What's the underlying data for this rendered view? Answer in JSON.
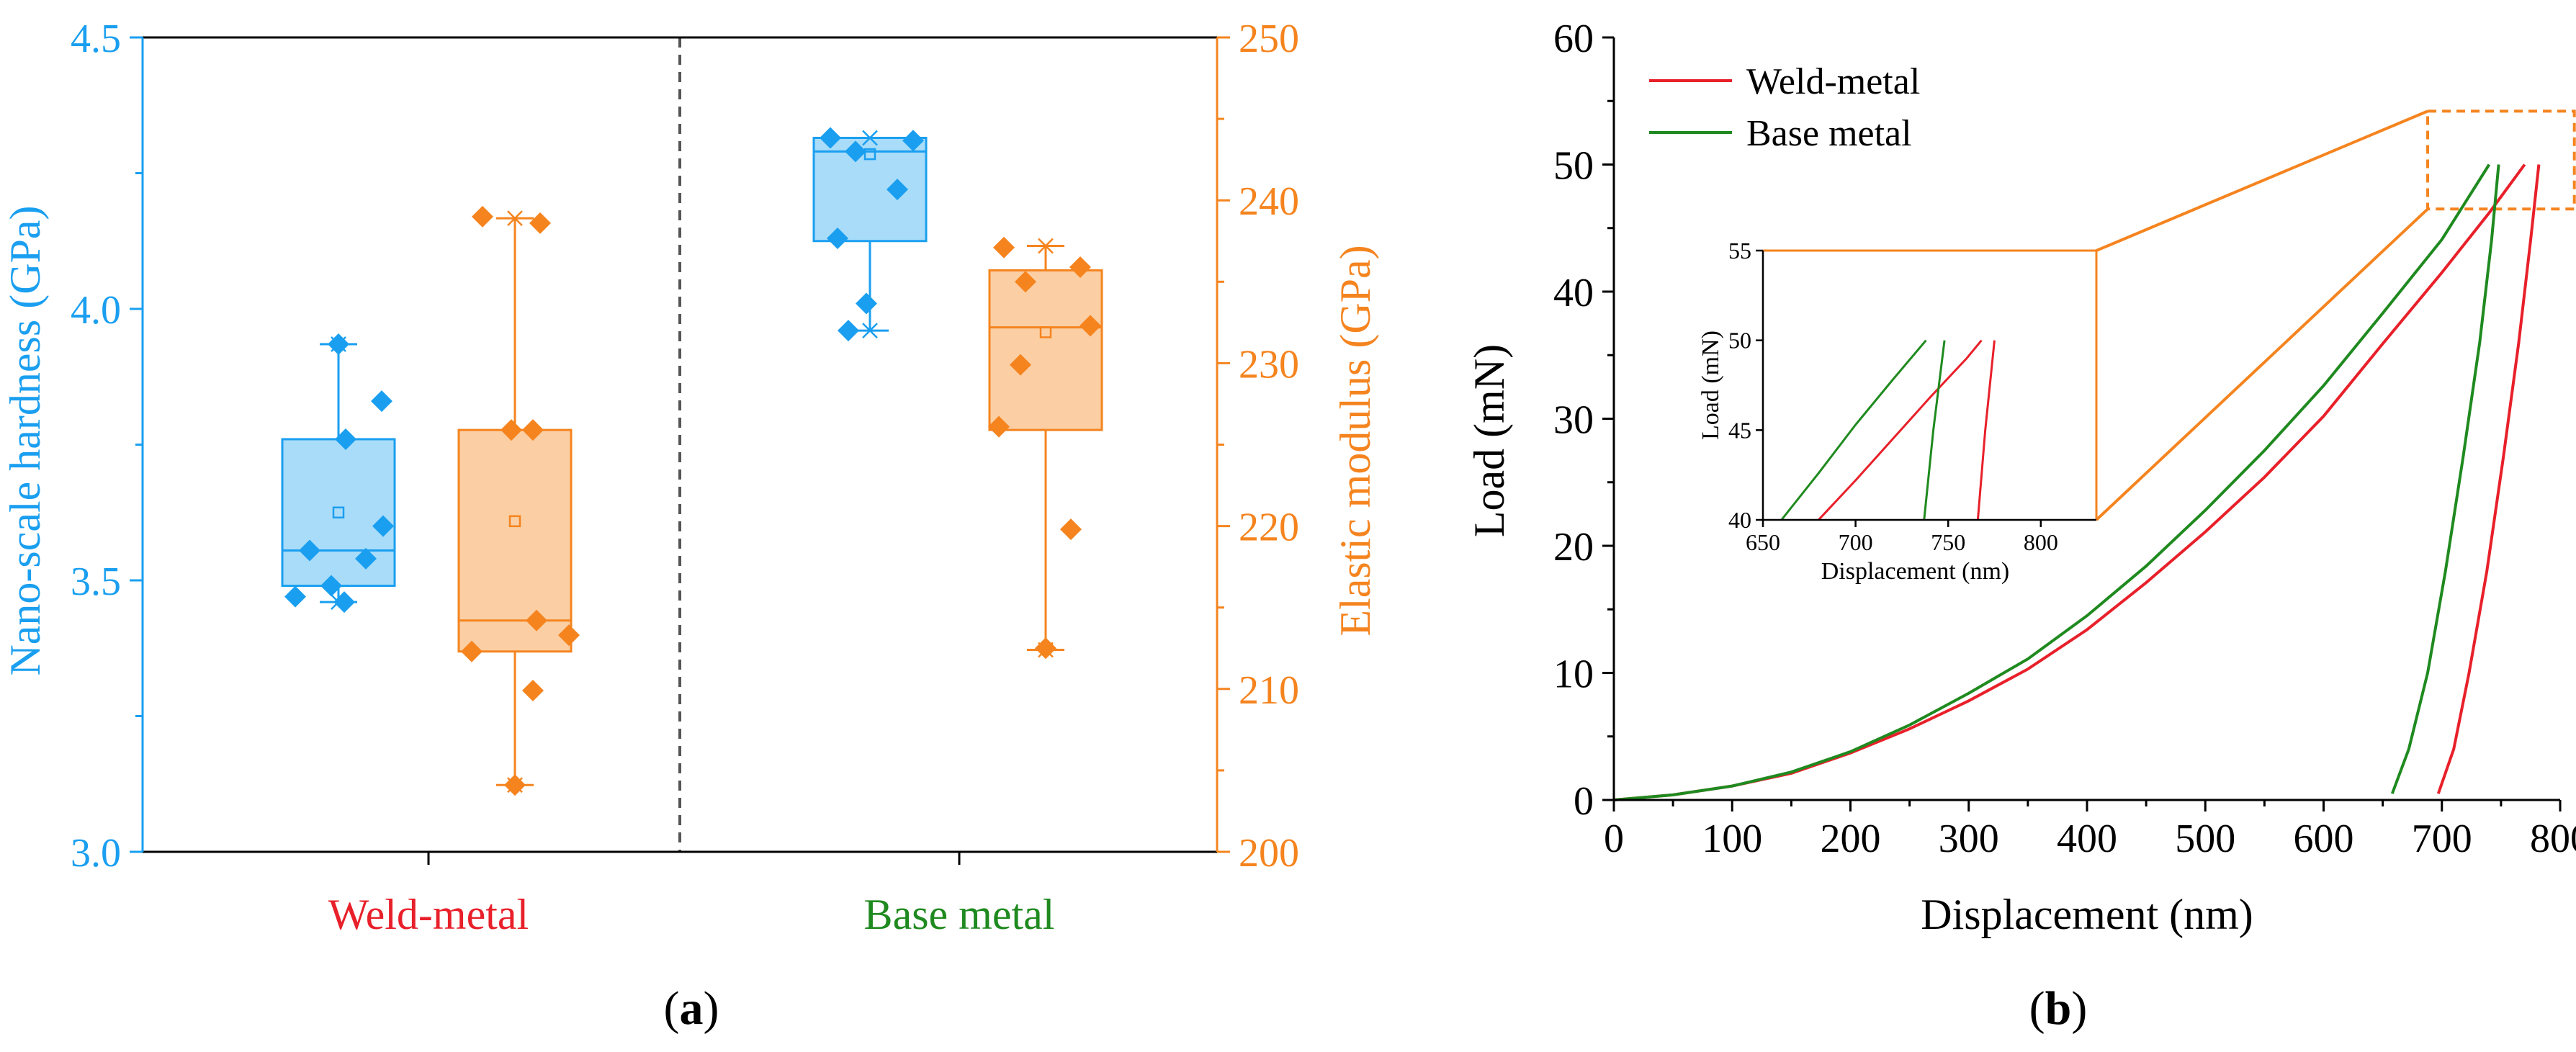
{
  "colors": {
    "hardness": "#1a9ff0",
    "hardness_fill": "#a9dcf9",
    "modulus": "#f5841f",
    "modulus_fill": "#fbcfa3",
    "weld": "#e8202a",
    "base": "#1f8a1f",
    "axis": "#000000"
  },
  "chart_data": [
    {
      "panel_label": "(a)",
      "panel_letter": "a",
      "type": "box",
      "left_axis": {
        "label": "Nano-scale hardness (GPa)",
        "range": [
          3.0,
          4.5
        ],
        "ticks": [
          "3.0",
          "3.5",
          "4.0",
          "4.5"
        ]
      },
      "right_axis": {
        "label": "Elastic modulus (GPa)",
        "range": [
          200,
          250
        ],
        "ticks": [
          "200",
          "210",
          "220",
          "230",
          "240",
          "250"
        ]
      },
      "categories": [
        "Weld-metal",
        "Base metal"
      ],
      "boxes": [
        {
          "group": "Weld-metal",
          "quantity": "hardness",
          "axis": "left",
          "min": 3.46,
          "q1": 3.49,
          "median": 3.555,
          "q3": 3.76,
          "max": 3.935,
          "mean": 3.625,
          "points": [
            3.935,
            3.83,
            3.76,
            3.6,
            3.555,
            3.54,
            3.49,
            3.47,
            3.46
          ]
        },
        {
          "group": "Weld-metal",
          "quantity": "modulus",
          "axis": "right",
          "min": 204.1,
          "q1": 212.3,
          "median": 214.2,
          "q3": 225.9,
          "max": 238.9,
          "mean": 220.3,
          "points": [
            239.0,
            238.6,
            225.9,
            225.9,
            214.2,
            213.3,
            212.3,
            209.9,
            204.1
          ]
        },
        {
          "group": "Base metal",
          "quantity": "hardness",
          "axis": "left",
          "min": 3.96,
          "q1": 4.125,
          "median": 4.29,
          "q3": 4.315,
          "max": 4.315,
          "mean": 4.285,
          "points": [
            4.315,
            4.31,
            4.29,
            4.22,
            4.13,
            4.01,
            3.96
          ]
        },
        {
          "group": "Base metal",
          "quantity": "modulus",
          "axis": "right",
          "min": 212.4,
          "q1": 225.9,
          "median": 232.2,
          "q3": 235.7,
          "max": 237.2,
          "mean": 231.9,
          "points": [
            237.1,
            235.9,
            235.0,
            232.3,
            229.9,
            226.1,
            219.8,
            212.5
          ]
        }
      ]
    },
    {
      "panel_label": "(b)",
      "panel_letter": "b",
      "type": "line",
      "xlabel": "Displacement (nm)",
      "ylabel": "Load (mN)",
      "xlim": [
        0,
        800
      ],
      "ylim": [
        0,
        60
      ],
      "x_ticks": [
        "0",
        "100",
        "200",
        "300",
        "400",
        "500",
        "600",
        "700",
        "800"
      ],
      "y_ticks": [
        "0",
        "10",
        "20",
        "30",
        "40",
        "50",
        "60"
      ],
      "series": [
        {
          "name": "Weld-metal",
          "loading": [
            [
              0,
              0
            ],
            [
              50,
              0.4
            ],
            [
              100,
              1.1
            ],
            [
              150,
              2.1
            ],
            [
              200,
              3.7
            ],
            [
              250,
              5.6
            ],
            [
              300,
              7.8
            ],
            [
              350,
              10.3
            ],
            [
              400,
              13.4
            ],
            [
              450,
              17.1
            ],
            [
              500,
              21.1
            ],
            [
              550,
              25.4
            ],
            [
              600,
              30.2
            ],
            [
              650,
              35.9
            ],
            [
              700,
              41.5
            ],
            [
              740,
              46.2
            ],
            [
              770,
              50.0
            ]
          ],
          "unloading": [
            [
              782,
              50.0
            ],
            [
              775,
              44.0
            ],
            [
              765,
              36.0
            ],
            [
              752,
              27.0
            ],
            [
              738,
              18.0
            ],
            [
              723,
              10.0
            ],
            [
              710,
              4.0
            ],
            [
              697,
              0.5
            ]
          ]
        },
        {
          "name": "Base metal",
          "loading": [
            [
              0,
              0
            ],
            [
              50,
              0.4
            ],
            [
              100,
              1.1
            ],
            [
              150,
              2.2
            ],
            [
              200,
              3.8
            ],
            [
              250,
              5.9
            ],
            [
              300,
              8.4
            ],
            [
              350,
              11.1
            ],
            [
              400,
              14.5
            ],
            [
              450,
              18.4
            ],
            [
              500,
              22.8
            ],
            [
              550,
              27.5
            ],
            [
              600,
              32.6
            ],
            [
              650,
              38.3
            ],
            [
              700,
              44.1
            ],
            [
              740,
              50.0
            ]
          ],
          "unloading": [
            [
              748,
              50.0
            ],
            [
              742,
              44.0
            ],
            [
              732,
              36.0
            ],
            [
              718,
              27.0
            ],
            [
              703,
              18.0
            ],
            [
              688,
              10.0
            ],
            [
              672,
              4.0
            ],
            [
              658,
              0.5
            ]
          ]
        }
      ],
      "zoom_box": {
        "x": [
          688,
          812
        ],
        "y": [
          46.5,
          54.2
        ]
      },
      "inset": {
        "xlabel": "Displacement (nm)",
        "ylabel": "Load (mN)",
        "xlim": [
          650,
          830
        ],
        "ylim": [
          40,
          55
        ],
        "x_ticks": [
          "650",
          "700",
          "750",
          "800"
        ],
        "y_ticks": [
          "40",
          "45",
          "50",
          "55"
        ],
        "series": [
          {
            "name": "Weld-metal",
            "loading": [
              [
                680,
                40.0
              ],
              [
                700,
                42.2
              ],
              [
                720,
                44.5
              ],
              [
                740,
                46.8
              ],
              [
                760,
                49.0
              ],
              [
                768,
                50.0
              ]
            ],
            "unloading": [
              [
                775,
                50.0
              ],
              [
                770,
                45.0
              ],
              [
                766,
                40.0
              ]
            ]
          },
          {
            "name": "Base metal",
            "loading": [
              [
                660,
                40.0
              ],
              [
                680,
                42.6
              ],
              [
                700,
                45.3
              ],
              [
                720,
                47.8
              ],
              [
                738,
                50.0
              ]
            ],
            "unloading": [
              [
                748,
                50.0
              ],
              [
                742,
                45.0
              ],
              [
                737,
                40.0
              ]
            ]
          }
        ]
      }
    }
  ]
}
